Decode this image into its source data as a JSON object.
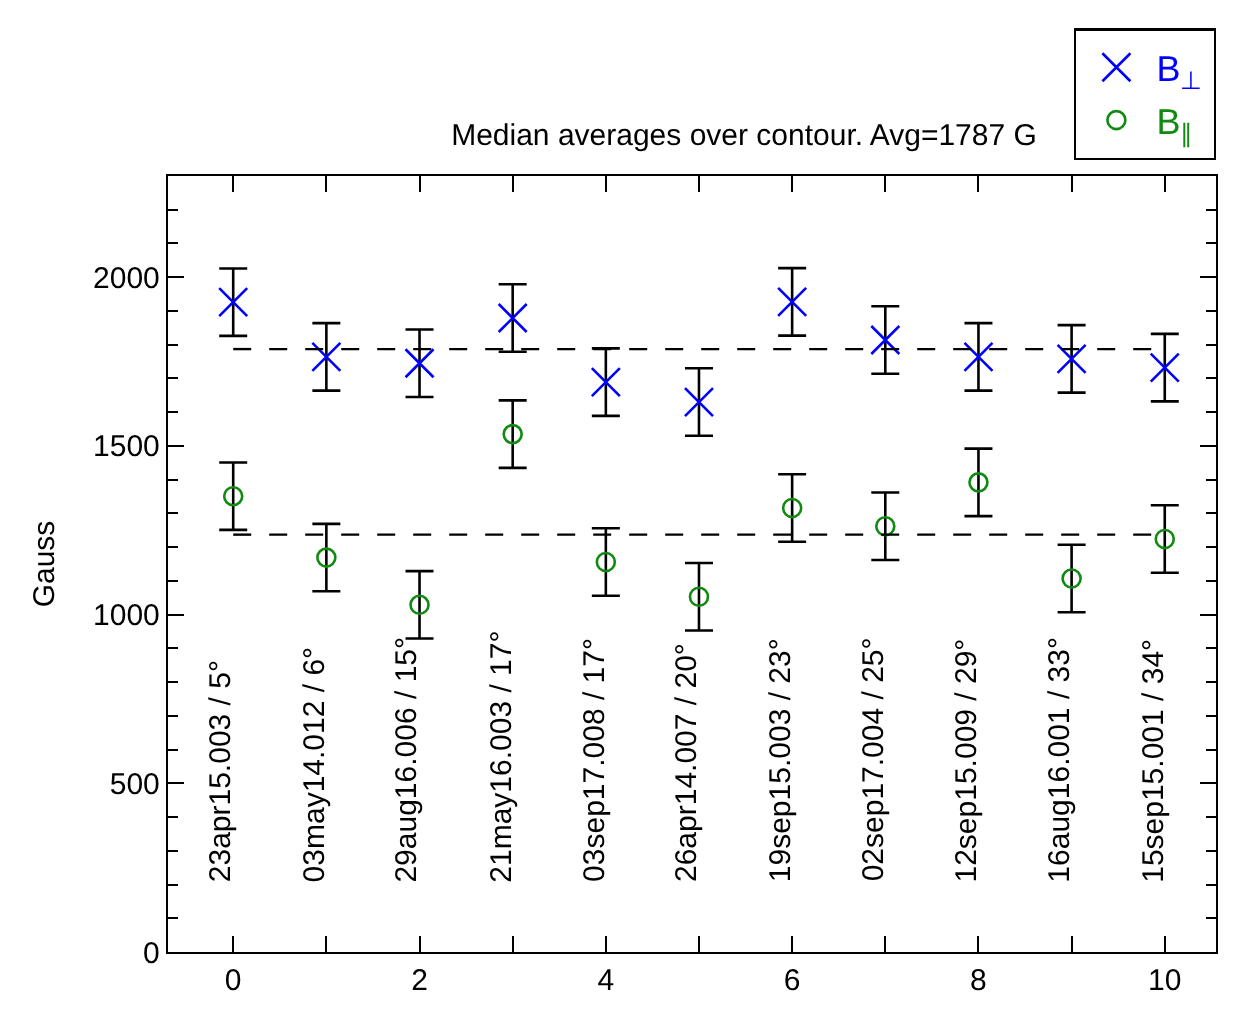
{
  "chart_data": {
    "type": "scatter",
    "title": "Median averages over contour. Avg=1787 G",
    "ylabel": "Gauss",
    "x": [
      0,
      1,
      2,
      3,
      4,
      5,
      6,
      7,
      8,
      9,
      10
    ],
    "series": [
      {
        "name": "B$_{⊥}$",
        "color": "#0000ff",
        "marker": "cross",
        "values": [
          1926,
          1764,
          1745,
          1879,
          1689,
          1630,
          1927,
          1814,
          1764,
          1758,
          1732
        ],
        "errors": [
          100,
          100,
          100,
          100,
          100,
          100,
          100,
          100,
          100,
          100,
          100
        ]
      },
      {
        "name": "B$_{∥}$",
        "color": "#108a10",
        "marker": "circle",
        "values": [
          1351,
          1169,
          1029,
          1535,
          1156,
          1053,
          1316,
          1262,
          1392,
          1107,
          1224
        ],
        "errors": [
          100,
          100,
          100,
          100,
          100,
          100,
          100,
          100,
          100,
          100,
          100
        ]
      }
    ],
    "ref_lines": [
      {
        "axis": "y",
        "value": 1787,
        "line_style": "dashed",
        "color": "#000000"
      },
      {
        "axis": "y",
        "value": 1237,
        "line_style": "dashed",
        "color": "#000000"
      }
    ],
    "annotations": [
      "23apr15.003 / 5°",
      "03may14.012 / 6°",
      "29aug16.006 / 15°",
      "21may16.003 / 17°",
      "03sep17.008 / 17°",
      "26apr14.007 / 20°",
      "19sep15.003 / 23°",
      "02sep17.004 / 25°",
      "12sep15.009 / 29°",
      "16aug16.001 / 33°",
      "15sep15.001 / 34°"
    ],
    "xlim": [
      -0.7,
      10.55
    ],
    "ylim": [
      0,
      2300
    ],
    "xticks": [
      0,
      {
        "value": 1,
        "label": null
      },
      2,
      {
        "value": 3,
        "label": null
      },
      4,
      {
        "value": 5,
        "label": null
      },
      6,
      {
        "value": 7,
        "label": null
      },
      8,
      {
        "value": 9,
        "label": null
      },
      10
    ],
    "yticks": [
      0,
      500,
      1000,
      1500,
      2000
    ],
    "legend": "top right"
  }
}
